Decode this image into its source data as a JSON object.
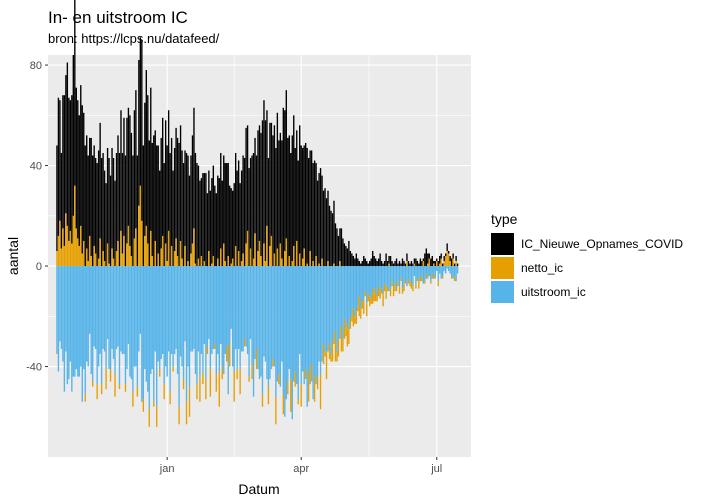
{
  "chart_data": {
    "type": "bar",
    "title": "In- en uitstroom IC",
    "subtitle": "bron: https://lcps.nu/datafeed/",
    "xlabel": "Datum",
    "ylabel": "aantal",
    "x_tick_labels": [
      "jan",
      "apr",
      "jul"
    ],
    "x_tick_dates": [
      "2021-01-01",
      "2021-04-01",
      "2021-07-01"
    ],
    "xlim": [
      "2020-10-13",
      "2021-07-24"
    ],
    "y_tick_values": [
      -40,
      0,
      40,
      80
    ],
    "y_tick_labels": [
      "-40",
      "0",
      "40",
      "80"
    ],
    "ylim": [
      -76,
      84
    ],
    "grid": true,
    "legend": {
      "title": "type",
      "placement": "right",
      "entries": [
        "IC_Nieuwe_Opnames_COVID",
        "netto_ic",
        "uitstroom_ic"
      ]
    },
    "colors": {
      "IC_Nieuwe_Opnames_COVID": "#000000",
      "netto_ic": "#E69F00",
      "uitstroom_ic": "#56B4E9",
      "panel": "#EBEBEB",
      "grid": "#FFFFFF"
    },
    "series_note_dates_start": "2020-10-19",
    "series": [
      {
        "name": "IC_Nieuwe_Opnames_COVID",
        "values": [
          42,
          55,
          48,
          38,
          53,
          60,
          55,
          65,
          57,
          52,
          59,
          64,
          76,
          56,
          55,
          52,
          56,
          59,
          51,
          48,
          45,
          42,
          39,
          47,
          44,
          40,
          38,
          41,
          43,
          46,
          43,
          39,
          36,
          33,
          38,
          42,
          36,
          40,
          40,
          34,
          39,
          42,
          45,
          48,
          40,
          47,
          44,
          50,
          47,
          52,
          49,
          44,
          51,
          55,
          44,
          58,
          59,
          72,
          48,
          53,
          62,
          59,
          50,
          57,
          45,
          52,
          44,
          48,
          43,
          38,
          44,
          47,
          41,
          49,
          46,
          48,
          45,
          43,
          38,
          41,
          44,
          47,
          49,
          46,
          43,
          41,
          38,
          45,
          42,
          36,
          39,
          43,
          48,
          44,
          41,
          37,
          34,
          31,
          37,
          35,
          37,
          29,
          32,
          30,
          34,
          36,
          32,
          29,
          33,
          35,
          38,
          34,
          35,
          39,
          41,
          37,
          32,
          30,
          27,
          33,
          37,
          38,
          36,
          33,
          36,
          39,
          43,
          46,
          42,
          39,
          36,
          44,
          42,
          38,
          44,
          48,
          46,
          49,
          58,
          57,
          56,
          46,
          43,
          49,
          45,
          52,
          51,
          47,
          54,
          50,
          44,
          47,
          63,
          56,
          59,
          51,
          48,
          45,
          50,
          52,
          47,
          44,
          42,
          51,
          48,
          44,
          41,
          49,
          46,
          43,
          40,
          46,
          39,
          42,
          37,
          34,
          36,
          39,
          33,
          30,
          31,
          27,
          28,
          24,
          22,
          21,
          25,
          17,
          15,
          12,
          13,
          15,
          11,
          9,
          8,
          7,
          10,
          6,
          5,
          4,
          3,
          5,
          3,
          2,
          1,
          2,
          4,
          3,
          2,
          1,
          2,
          3,
          6,
          4,
          3,
          2,
          3,
          5,
          2,
          1,
          2,
          5,
          2,
          3,
          4,
          2,
          1,
          2,
          3,
          1,
          2,
          1,
          3,
          2,
          1,
          3,
          2,
          1,
          2,
          1,
          2,
          3,
          2,
          1,
          3,
          2,
          1,
          5,
          7,
          4,
          2,
          3,
          4,
          1,
          2,
          1,
          2,
          3,
          2,
          1,
          2,
          1,
          3,
          1,
          2,
          3,
          2,
          1,
          2,
          1
        ]
      },
      {
        "name": "netto_ic",
        "values": [
          6,
          12,
          18,
          7,
          15,
          8,
          21,
          16,
          10,
          14,
          9,
          20,
          32,
          15,
          11,
          8,
          16,
          5,
          10,
          -3,
          7,
          2,
          12,
          4,
          -2,
          8,
          5,
          -6,
          3,
          11,
          -4,
          6,
          2,
          -8,
          9,
          1,
          -5,
          7,
          3,
          -9,
          6,
          10,
          -2,
          14,
          5,
          12,
          -3,
          9,
          16,
          8,
          4,
          -6,
          11,
          15,
          -4,
          24,
          32,
          18,
          -5,
          12,
          16,
          9,
          -7,
          14,
          4,
          -2,
          10,
          -8,
          5,
          -3,
          7,
          12,
          -6,
          9,
          2,
          14,
          -5,
          8,
          -2,
          6,
          11,
          4,
          -7,
          10,
          3,
          -4,
          8,
          -9,
          2,
          -12,
          5,
          9,
          15,
          1,
          -6,
          3,
          -10,
          4,
          -5,
          2,
          -8,
          -3,
          6,
          -11,
          1,
          4,
          -2,
          -7,
          3,
          -14,
          7,
          -5,
          9,
          2,
          -6,
          4,
          -9,
          1,
          3,
          -12,
          8,
          -4,
          6,
          -10,
          2,
          5,
          -3,
          9,
          14,
          -2,
          7,
          -6,
          3,
          13,
          -8,
          6,
          10,
          4,
          -5,
          9,
          2,
          16,
          -7,
          8,
          12,
          -3,
          5,
          -11,
          7,
          -4,
          9,
          3,
          -8,
          6,
          11,
          -5,
          4,
          -13,
          2,
          8,
          -6,
          10,
          -2,
          5,
          -9,
          3,
          7,
          -4,
          1,
          -12,
          6,
          -7,
          2,
          -10,
          4,
          -5,
          1,
          -14,
          3,
          -8,
          -2,
          -11,
          2,
          -6,
          -3,
          -9,
          1,
          -12,
          -4,
          -7,
          2,
          -10,
          -5,
          -8,
          -3,
          -9,
          -6,
          -4,
          -2,
          -7,
          -3,
          -5,
          -2,
          -8,
          -4,
          -3,
          -6,
          -2,
          -5,
          -3,
          -4,
          -2,
          -6,
          -3,
          -5,
          -2,
          -4,
          -3,
          -2,
          -5,
          -3,
          -4,
          -2,
          1,
          -3,
          -2,
          -4,
          -3,
          -1,
          -2,
          -3,
          -1,
          -2,
          -3,
          -1,
          2,
          -2,
          -1,
          -3,
          -2,
          1,
          -2,
          -1,
          -3,
          -2,
          -1,
          2,
          -1,
          -2,
          1,
          3,
          -1,
          -2,
          1,
          -1,
          2,
          -2,
          1,
          3,
          -1,
          2,
          4,
          6,
          5,
          2,
          -1,
          3,
          -2,
          2
        ]
      },
      {
        "name": "uitstroom_ic",
        "values": [
          -35,
          -42,
          -30,
          -33,
          -38,
          -50,
          -34,
          -47,
          -45,
          -38,
          -50,
          -44,
          -44,
          -41,
          -44,
          -44,
          -40,
          -54,
          -41,
          -51,
          -38,
          -40,
          -27,
          -43,
          -46,
          -32,
          -33,
          -47,
          -40,
          -35,
          -47,
          -33,
          -34,
          -41,
          -29,
          -41,
          -41,
          -33,
          -37,
          -43,
          -33,
          -32,
          -47,
          -34,
          -35,
          -35,
          -47,
          -41,
          -31,
          -44,
          -45,
          -50,
          -40,
          -40,
          -48,
          -34,
          -27,
          -54,
          -53,
          -41,
          -46,
          -50,
          -57,
          -43,
          -41,
          -54,
          -34,
          -56,
          -38,
          -41,
          -37,
          -35,
          -47,
          -40,
          -44,
          -34,
          -50,
          -35,
          -40,
          -35,
          -33,
          -43,
          -56,
          -36,
          -40,
          -45,
          -30,
          -54,
          -40,
          -48,
          -34,
          -34,
          -33,
          -43,
          -47,
          -34,
          -44,
          -35,
          -42,
          -31,
          -45,
          -32,
          -29,
          -41,
          -35,
          -33,
          -31,
          -43,
          -35,
          -42,
          -31,
          -40,
          -43,
          -35,
          -32,
          -51,
          -31,
          -25,
          -40,
          -42,
          -33,
          -41,
          -33,
          -41,
          -34,
          -34,
          -29,
          -32,
          -35,
          -44,
          -29,
          -39,
          -52,
          -37,
          -33,
          -41,
          -45,
          -44,
          -51,
          -36,
          -38,
          -45,
          -48,
          -45,
          -41,
          -37,
          -40,
          -52,
          -46,
          -43,
          -48,
          -38,
          -51,
          -60,
          -53,
          -46,
          -41,
          -45,
          -61,
          -46,
          -42,
          -47,
          -53,
          -35,
          -47,
          -42,
          -47,
          -41,
          -56,
          -42,
          -47,
          -39,
          -53,
          -44,
          -47,
          -44,
          -38,
          -43,
          -38,
          -31,
          -34,
          -34,
          -34,
          -31,
          -35,
          -29,
          -31,
          -26,
          -34,
          -29,
          -29,
          -24,
          -29,
          -21,
          -25,
          -23,
          -25,
          -21,
          -20,
          -17,
          -20,
          -18,
          -16,
          -12,
          -17,
          -14,
          -13,
          -10,
          -15,
          -11,
          -12,
          -13,
          -9,
          -11,
          -9,
          -12,
          -8,
          -10,
          -9,
          -11,
          -7,
          -9,
          -8,
          -10,
          -9,
          -6,
          -8,
          -7,
          -9,
          -6,
          -8,
          -5,
          -9,
          -7,
          -6,
          -8,
          -5,
          -7,
          -6,
          -8,
          -4,
          -7,
          -5,
          -6,
          -4,
          -5,
          -7,
          -6,
          -3,
          -5,
          -4,
          -6,
          -3,
          -5,
          -4,
          -2,
          -6,
          -3,
          -5,
          -4,
          -2,
          -3,
          -1,
          -2,
          -3,
          -4,
          -5,
          -4,
          -6,
          -3
        ]
      }
    ]
  }
}
